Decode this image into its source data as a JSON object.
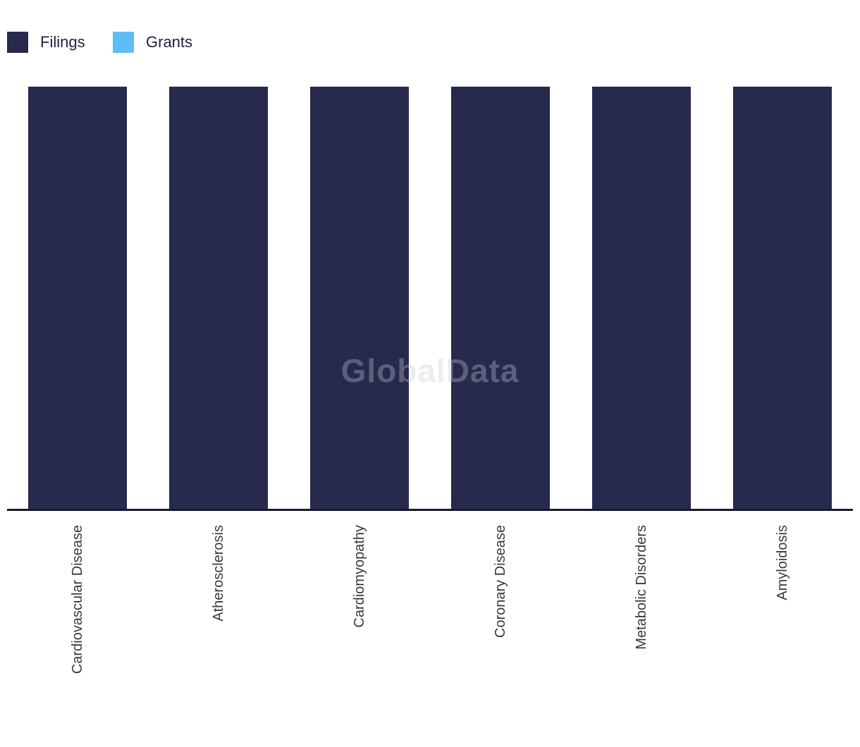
{
  "legend": [
    {
      "label": "Filings",
      "color": "#272A4D"
    },
    {
      "label": "Grants",
      "color": "#5DBEF5"
    }
  ],
  "watermark": "GlobalData",
  "colors": {
    "bar_filings": "#272A4D",
    "grants_accent": "#5DBEF5",
    "axis_line": "#16182E",
    "category_label_text": "#383838",
    "legend_text": "#20233c",
    "background": "#ffffff"
  },
  "chart_data": {
    "type": "bar",
    "categories": [
      "Cardiovascular Disease",
      "Atherosclerosis",
      "Cardiomyopathy",
      "Coronary Disease",
      "Metabolic Disorders",
      "Amyloidosis"
    ],
    "series": [
      {
        "name": "Filings",
        "values": [
          1,
          1,
          1,
          1,
          1,
          1
        ]
      },
      {
        "name": "Grants",
        "values": [
          0,
          0,
          0,
          0,
          0,
          0
        ]
      }
    ],
    "title": "",
    "xlabel": "",
    "ylabel": "",
    "ylim": [
      0,
      1
    ],
    "grid": false,
    "y_axis_visible": false,
    "legend_position": "top-left",
    "x_label_rotation": -90
  }
}
